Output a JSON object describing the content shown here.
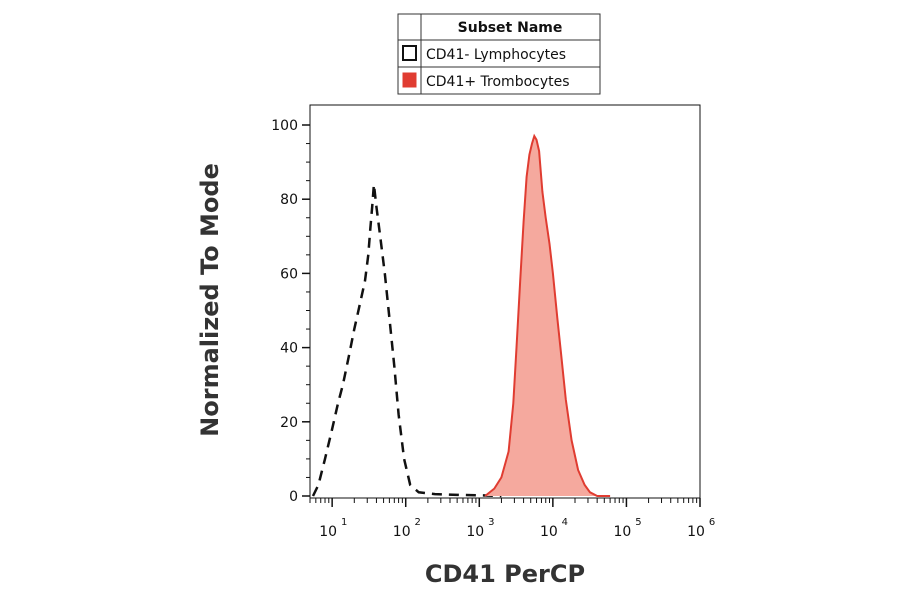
{
  "chart_data": {
    "type": "area",
    "xlabel": "CD41 PerCP",
    "ylabel": "Normalized To Mode",
    "x_scale": "log",
    "xlim": [
      5,
      1000000
    ],
    "ylim": [
      0,
      100
    ],
    "x_tick_labels": [
      "10",
      "10",
      "10",
      "10",
      "10",
      "10"
    ],
    "x_tick_exponents": [
      "1",
      "2",
      "3",
      "4",
      "5",
      "6"
    ],
    "x_tick_values": [
      10,
      100,
      1000,
      10000,
      100000,
      1000000
    ],
    "y_tick_labels": [
      "0",
      "20",
      "40",
      "60",
      "80",
      "100"
    ],
    "y_tick_values": [
      0,
      20,
      40,
      60,
      80,
      100
    ],
    "legend": {
      "header": "Subset Name",
      "placement": "top-center"
    },
    "series": [
      {
        "name": "CD41- Lymphocytes",
        "style": "dashed-outline",
        "color": "#111111",
        "x": [
          5.5,
          6.5,
          8,
          10,
          12,
          14,
          17,
          20,
          24,
          28,
          31,
          33,
          35,
          37,
          40,
          45,
          52,
          60,
          70,
          80,
          95,
          115,
          150,
          250,
          500,
          1000,
          2000
        ],
        "y": [
          0,
          3,
          10,
          18,
          25,
          30,
          38,
          45,
          52,
          58,
          65,
          72,
          78,
          84,
          78,
          70,
          60,
          48,
          35,
          22,
          10,
          3,
          1,
          0.5,
          0.3,
          0.2,
          0
        ]
      },
      {
        "name": "CD41+ Trombocytes",
        "style": "filled",
        "color": "#e03c31",
        "fill": "#f5a99e",
        "x": [
          1200,
          1600,
          2000,
          2500,
          2900,
          3200,
          3600,
          4000,
          4400,
          4800,
          5200,
          5600,
          6000,
          6500,
          7200,
          8000,
          9000,
          10000,
          11500,
          13000,
          15000,
          18000,
          22000,
          27000,
          32000,
          40000,
          50000,
          60000
        ],
        "y": [
          0,
          2,
          5,
          12,
          25,
          40,
          58,
          74,
          86,
          92,
          95,
          97,
          96,
          93,
          82,
          75,
          68,
          60,
          48,
          38,
          26,
          15,
          7,
          3,
          1,
          0,
          0,
          0
        ]
      }
    ]
  }
}
